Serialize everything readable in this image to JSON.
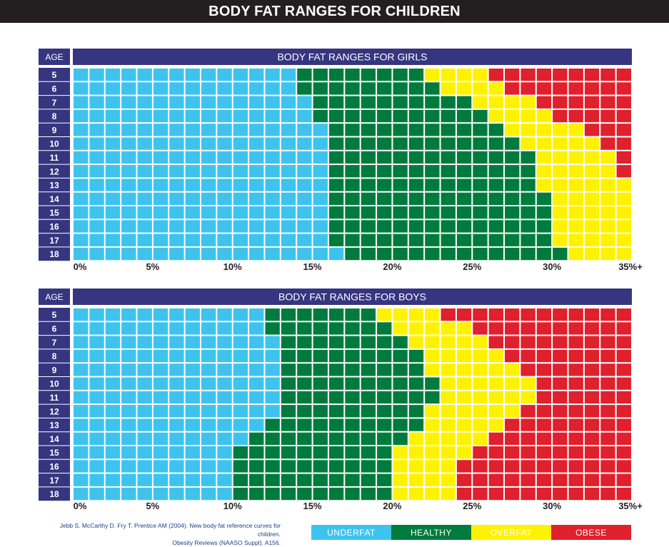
{
  "title": "BODY FAT RANGES FOR CHILDREN",
  "colors": {
    "underfat": "#3ec3ee",
    "healthy": "#007b3e",
    "overfat": "#fff200",
    "obese": "#e0202d",
    "header": "#363580",
    "dark": "#231f20"
  },
  "chart_data": [
    {
      "type": "heatmap",
      "title": "BODY FAT RANGES FOR GIRLS",
      "ylabel": "AGE",
      "categories": [
        "5",
        "6",
        "7",
        "8",
        "9",
        "10",
        "11",
        "12",
        "13",
        "14",
        "15",
        "16",
        "17",
        "18"
      ],
      "x_ticks": [
        "0%",
        "5%",
        "10%",
        "15%",
        "20%",
        "25%",
        "30%",
        "35%+"
      ],
      "xlim": [
        0,
        35
      ],
      "series": [
        {
          "name": "UNDERFAT",
          "values": [
            13.5,
            13.5,
            14.5,
            14.5,
            15.5,
            15.5,
            15.5,
            15.5,
            15.5,
            15.5,
            15.5,
            15.5,
            15.5,
            16.5
          ]
        },
        {
          "name": "HEALTHY",
          "values": [
            21.5,
            22.5,
            24.5,
            25.5,
            26.5,
            27.5,
            28.5,
            28.5,
            28.5,
            29.5,
            29.5,
            29.5,
            29.5,
            30.5
          ]
        },
        {
          "name": "OVERFAT",
          "values": [
            25.5,
            26.5,
            28.5,
            29.5,
            31.5,
            32.5,
            33.5,
            33.5,
            34.5,
            34.5,
            35,
            35,
            35,
            35
          ]
        },
        {
          "name": "OBESE",
          "values": [
            35,
            35,
            35,
            35,
            35,
            35,
            35,
            35,
            35,
            35,
            35,
            35,
            35,
            35
          ]
        }
      ]
    },
    {
      "type": "heatmap",
      "title": "BODY FAT RANGES FOR BOYS",
      "ylabel": "AGE",
      "categories": [
        "5",
        "6",
        "7",
        "8",
        "9",
        "10",
        "11",
        "12",
        "13",
        "14",
        "15",
        "16",
        "17",
        "18"
      ],
      "x_ticks": [
        "0%",
        "5%",
        "10%",
        "15%",
        "20%",
        "25%",
        "30%",
        "35%+"
      ],
      "xlim": [
        0,
        35
      ],
      "series": [
        {
          "name": "UNDERFAT",
          "values": [
            11.5,
            11.5,
            12.5,
            12.5,
            12.5,
            12.5,
            12.5,
            12.5,
            11.5,
            10.5,
            9.5,
            9.5,
            9.5,
            9.5
          ]
        },
        {
          "name": "HEALTHY",
          "values": [
            18.5,
            19.5,
            20.5,
            21.5,
            21.5,
            22.5,
            22.5,
            21.5,
            21.5,
            20.5,
            19.5,
            19.5,
            19.5,
            19.5
          ]
        },
        {
          "name": "OVERFAT",
          "values": [
            22.5,
            24.5,
            25.5,
            26.5,
            27.5,
            28.5,
            28.5,
            27.5,
            26.5,
            25.5,
            24.5,
            23.5,
            23.5,
            23.5
          ]
        },
        {
          "name": "OBESE",
          "values": [
            35,
            35,
            35,
            35,
            35,
            35,
            35,
            35,
            35,
            35,
            35,
            35,
            35,
            35
          ]
        }
      ]
    }
  ],
  "citation": {
    "line1": "Jebb S. McCarthy D. Fry T. Prentice AM (2004).  New body fat reference curves for children.",
    "line2": "Obesity Reviews (NAASO Suppl). A156."
  },
  "legend": [
    {
      "label": "UNDERFAT",
      "color": "#3ec3ee"
    },
    {
      "label": "HEALTHY",
      "color": "#007b3e"
    },
    {
      "label": "OVERFAT",
      "color": "#fff200"
    },
    {
      "label": "OBESE",
      "color": "#e0202d"
    }
  ]
}
